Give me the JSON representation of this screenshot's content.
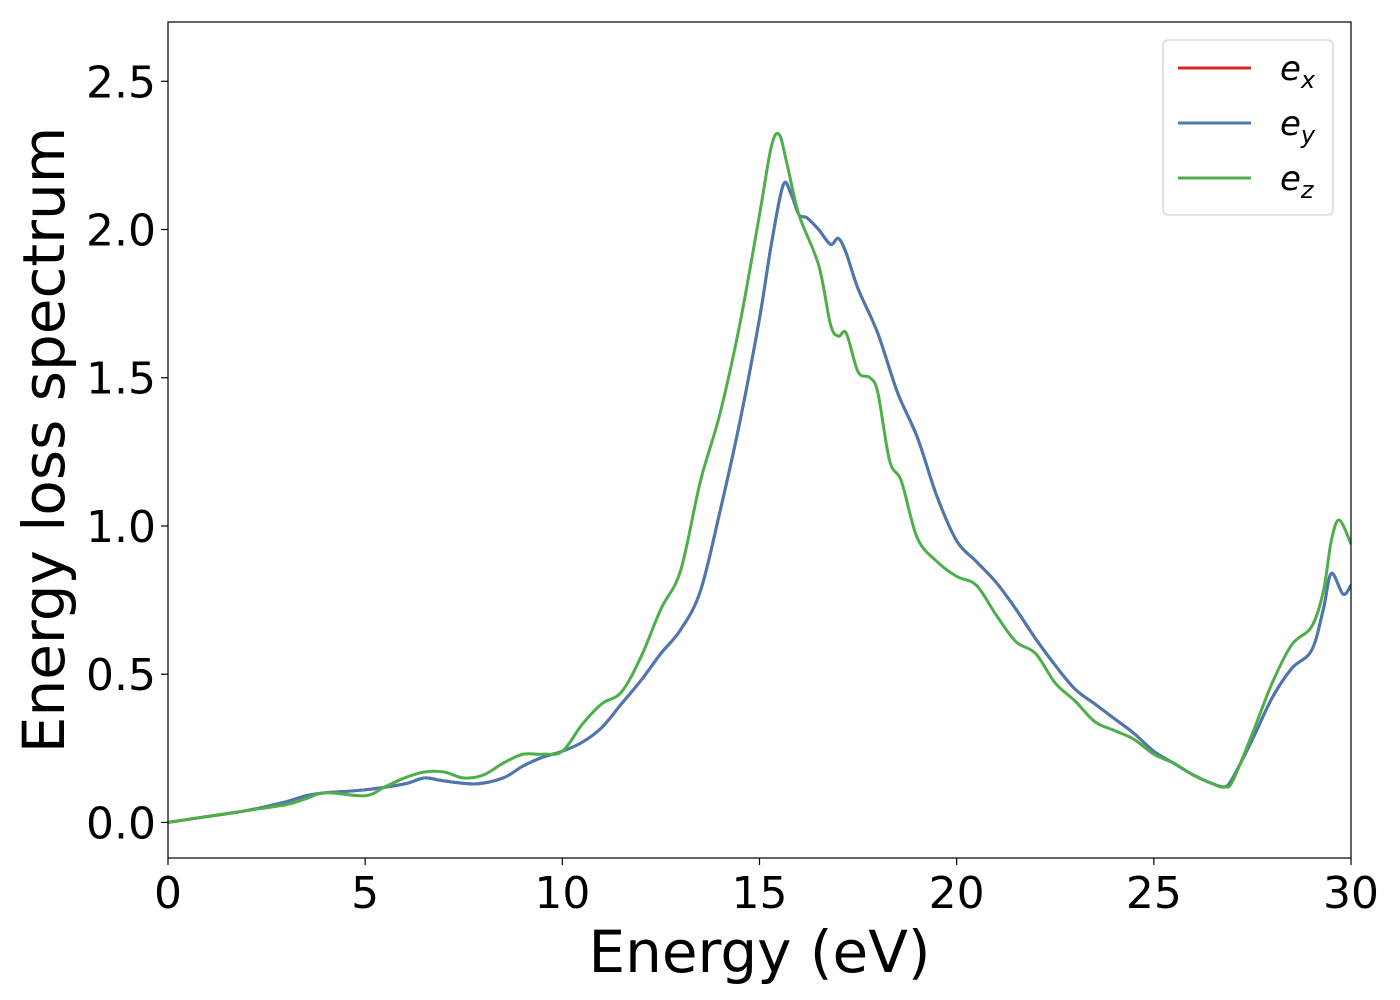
{
  "chart_data": {
    "type": "line",
    "title": "",
    "xlabel": "Energy (eV)",
    "ylabel": "Energy loss spectrum",
    "xlim": [
      0,
      30
    ],
    "ylim": [
      -0.12,
      2.7
    ],
    "xticks": [
      0,
      5,
      10,
      15,
      20,
      25,
      30
    ],
    "xtick_labels": [
      "0",
      "5",
      "10",
      "15",
      "20",
      "25",
      "30"
    ],
    "yticks": [
      0.0,
      0.5,
      1.0,
      1.5,
      2.0,
      2.5
    ],
    "ytick_labels": [
      "0.0",
      "0.5",
      "1.0",
      "1.5",
      "2.0",
      "2.5"
    ],
    "grid": false,
    "legend_position": "top-right",
    "series": [
      {
        "name": "e_x",
        "label_base": "e",
        "label_sub": "x",
        "color": "#d62728",
        "x": [
          0,
          1,
          2,
          3,
          3.5,
          4,
          5,
          6,
          6.5,
          7,
          7.8,
          8.5,
          9,
          9.5,
          10,
          10.5,
          11,
          11.5,
          12,
          12.5,
          13,
          13.5,
          14,
          14.5,
          15,
          15.3,
          15.6,
          15.8,
          16,
          16.2,
          16.5,
          16.8,
          17,
          17.2,
          17.5,
          18,
          18.5,
          19,
          19.5,
          20,
          20.5,
          21,
          21.5,
          22,
          22.5,
          23,
          23.5,
          24,
          24.5,
          25,
          25.5,
          26,
          26.5,
          26.8,
          27,
          27.5,
          28,
          28.5,
          29,
          29.3,
          29.5,
          29.8,
          30
        ],
        "y": [
          0.0,
          0.02,
          0.04,
          0.07,
          0.09,
          0.1,
          0.11,
          0.13,
          0.15,
          0.14,
          0.13,
          0.15,
          0.19,
          0.22,
          0.24,
          0.27,
          0.32,
          0.4,
          0.48,
          0.57,
          0.65,
          0.78,
          1.05,
          1.35,
          1.7,
          1.95,
          2.15,
          2.12,
          2.05,
          2.04,
          2.0,
          1.95,
          1.97,
          1.92,
          1.8,
          1.65,
          1.45,
          1.3,
          1.1,
          0.95,
          0.88,
          0.81,
          0.72,
          0.62,
          0.53,
          0.45,
          0.4,
          0.35,
          0.3,
          0.24,
          0.2,
          0.16,
          0.13,
          0.12,
          0.15,
          0.28,
          0.42,
          0.52,
          0.58,
          0.72,
          0.84,
          0.77,
          0.8
        ]
      },
      {
        "name": "e_y",
        "label_base": "e",
        "label_sub": "y",
        "color": "#4a78b0",
        "x": [
          0,
          1,
          2,
          3,
          3.5,
          4,
          5,
          6,
          6.5,
          7,
          7.8,
          8.5,
          9,
          9.5,
          10,
          10.5,
          11,
          11.5,
          12,
          12.5,
          13,
          13.5,
          14,
          14.5,
          15,
          15.3,
          15.6,
          15.8,
          16,
          16.2,
          16.5,
          16.8,
          17,
          17.2,
          17.5,
          18,
          18.5,
          19,
          19.5,
          20,
          20.5,
          21,
          21.5,
          22,
          22.5,
          23,
          23.5,
          24,
          24.5,
          25,
          25.5,
          26,
          26.5,
          26.8,
          27,
          27.5,
          28,
          28.5,
          29,
          29.3,
          29.5,
          29.8,
          30
        ],
        "y": [
          0.0,
          0.02,
          0.04,
          0.07,
          0.09,
          0.1,
          0.11,
          0.13,
          0.15,
          0.14,
          0.13,
          0.15,
          0.19,
          0.22,
          0.24,
          0.27,
          0.32,
          0.4,
          0.48,
          0.57,
          0.65,
          0.78,
          1.05,
          1.35,
          1.7,
          1.95,
          2.15,
          2.12,
          2.05,
          2.04,
          2.0,
          1.95,
          1.97,
          1.92,
          1.8,
          1.65,
          1.45,
          1.3,
          1.1,
          0.95,
          0.88,
          0.81,
          0.72,
          0.62,
          0.53,
          0.45,
          0.4,
          0.35,
          0.3,
          0.24,
          0.2,
          0.16,
          0.13,
          0.12,
          0.15,
          0.28,
          0.42,
          0.52,
          0.58,
          0.72,
          0.84,
          0.77,
          0.8
        ]
      },
      {
        "name": "e_z",
        "label_base": "e",
        "label_sub": "z",
        "color": "#4daf4a",
        "x": [
          0,
          1,
          2,
          3,
          3.5,
          4,
          5,
          5.5,
          6,
          6.5,
          7,
          7.5,
          8,
          8.5,
          9,
          9.5,
          10,
          10.5,
          11,
          11.5,
          12,
          12.5,
          13,
          13.5,
          14,
          14.5,
          15,
          15.3,
          15.5,
          15.7,
          16,
          16.5,
          16.8,
          17,
          17.2,
          17.5,
          17.8,
          18,
          18.3,
          18.6,
          19,
          19.5,
          20,
          20.5,
          21,
          21.5,
          22,
          22.5,
          23,
          23.5,
          24,
          24.5,
          25,
          25.5,
          26,
          26.5,
          26.8,
          27,
          27.5,
          28,
          28.5,
          29,
          29.3,
          29.5,
          29.7,
          30
        ],
        "y": [
          0.0,
          0.02,
          0.04,
          0.06,
          0.08,
          0.1,
          0.09,
          0.12,
          0.15,
          0.17,
          0.17,
          0.15,
          0.16,
          0.2,
          0.23,
          0.23,
          0.24,
          0.33,
          0.4,
          0.44,
          0.56,
          0.72,
          0.85,
          1.15,
          1.38,
          1.68,
          2.05,
          2.28,
          2.32,
          2.22,
          2.05,
          1.88,
          1.68,
          1.64,
          1.65,
          1.52,
          1.5,
          1.45,
          1.22,
          1.15,
          0.96,
          0.88,
          0.83,
          0.8,
          0.7,
          0.61,
          0.57,
          0.47,
          0.41,
          0.34,
          0.31,
          0.28,
          0.23,
          0.2,
          0.16,
          0.13,
          0.12,
          0.14,
          0.3,
          0.47,
          0.6,
          0.66,
          0.78,
          0.95,
          1.02,
          0.94
        ]
      }
    ]
  }
}
